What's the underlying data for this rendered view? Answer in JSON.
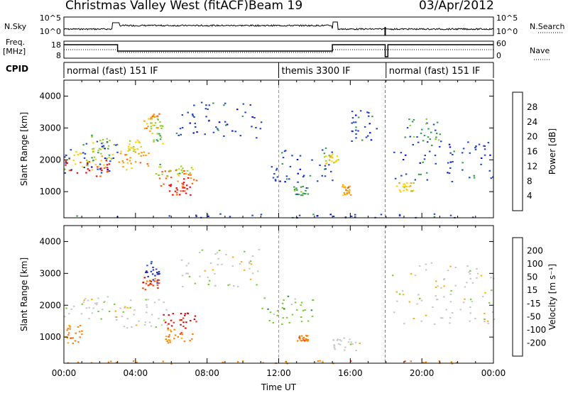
{
  "header": {
    "station": "Christmas Valley West (fitACF)",
    "beam": "Beam 19",
    "date": "03/Apr/2012"
  },
  "panels": {
    "nsky_label": "N.Sky",
    "nsearch_label": "N.Search",
    "nsky_ticks": [
      "10^5",
      "10^0"
    ],
    "nsearch_ticks": [
      "10^5",
      "10^0"
    ],
    "freq_label_1": "Freq.",
    "freq_label_2": "[MHz]",
    "freq_ticks": [
      "18",
      "8"
    ],
    "nave_label": "Nave",
    "nave_ticks": [
      "60",
      "0"
    ],
    "cpid_label": "CPID",
    "cpid_segments": [
      {
        "label": "normal (fast) 151 IF",
        "start_h": 0,
        "end_h": 12
      },
      {
        "label": "themis 3300 IF",
        "start_h": 12,
        "end_h": 18
      },
      {
        "label": "normal (fast) 151 IF",
        "start_h": 18,
        "end_h": 24
      }
    ]
  },
  "chart_data": [
    {
      "type": "heatmap",
      "ylabel": "Slant Range [km]",
      "xlim_hours": [
        0,
        24
      ],
      "ylim": [
        180,
        4500
      ],
      "ytick_labels": [
        "1000",
        "2000",
        "3000",
        "4000"
      ],
      "colorbar_label": "Power [dB]",
      "colorbar_ticks": [
        "28",
        "24",
        "20",
        "16",
        "12",
        "8",
        "4"
      ],
      "colorbar_colors": [
        "#ff0000",
        "#ff5a00",
        "#ff9a00",
        "#ffd000",
        "#8fd12a",
        "#2e9e4a",
        "#1f3fd1",
        "#0000ff"
      ]
    },
    {
      "type": "heatmap",
      "ylabel": "Slant Range [km]",
      "xlabel": "Time UT",
      "xlim_hours": [
        0,
        24
      ],
      "ylim": [
        180,
        4500
      ],
      "ytick_labels": [
        "1000",
        "2000",
        "3000",
        "4000"
      ],
      "xtick_labels": [
        "00:00",
        "04:00",
        "08:00",
        "12:00",
        "16:00",
        "20:00",
        "00:00"
      ],
      "colorbar_label": "Velocity [m s⁻¹]",
      "colorbar_ticks": [
        "200",
        "100",
        "50",
        "15",
        "-15",
        "-50",
        "-100",
        "-200"
      ],
      "colorbar_colors": [
        "#1a2fb4",
        "#2a58c8",
        "#2e8f4a",
        "#7acc2e",
        "#c8c8c8",
        "#ffb000",
        "#ff8000",
        "#ff3a00",
        "#e00000"
      ]
    }
  ]
}
